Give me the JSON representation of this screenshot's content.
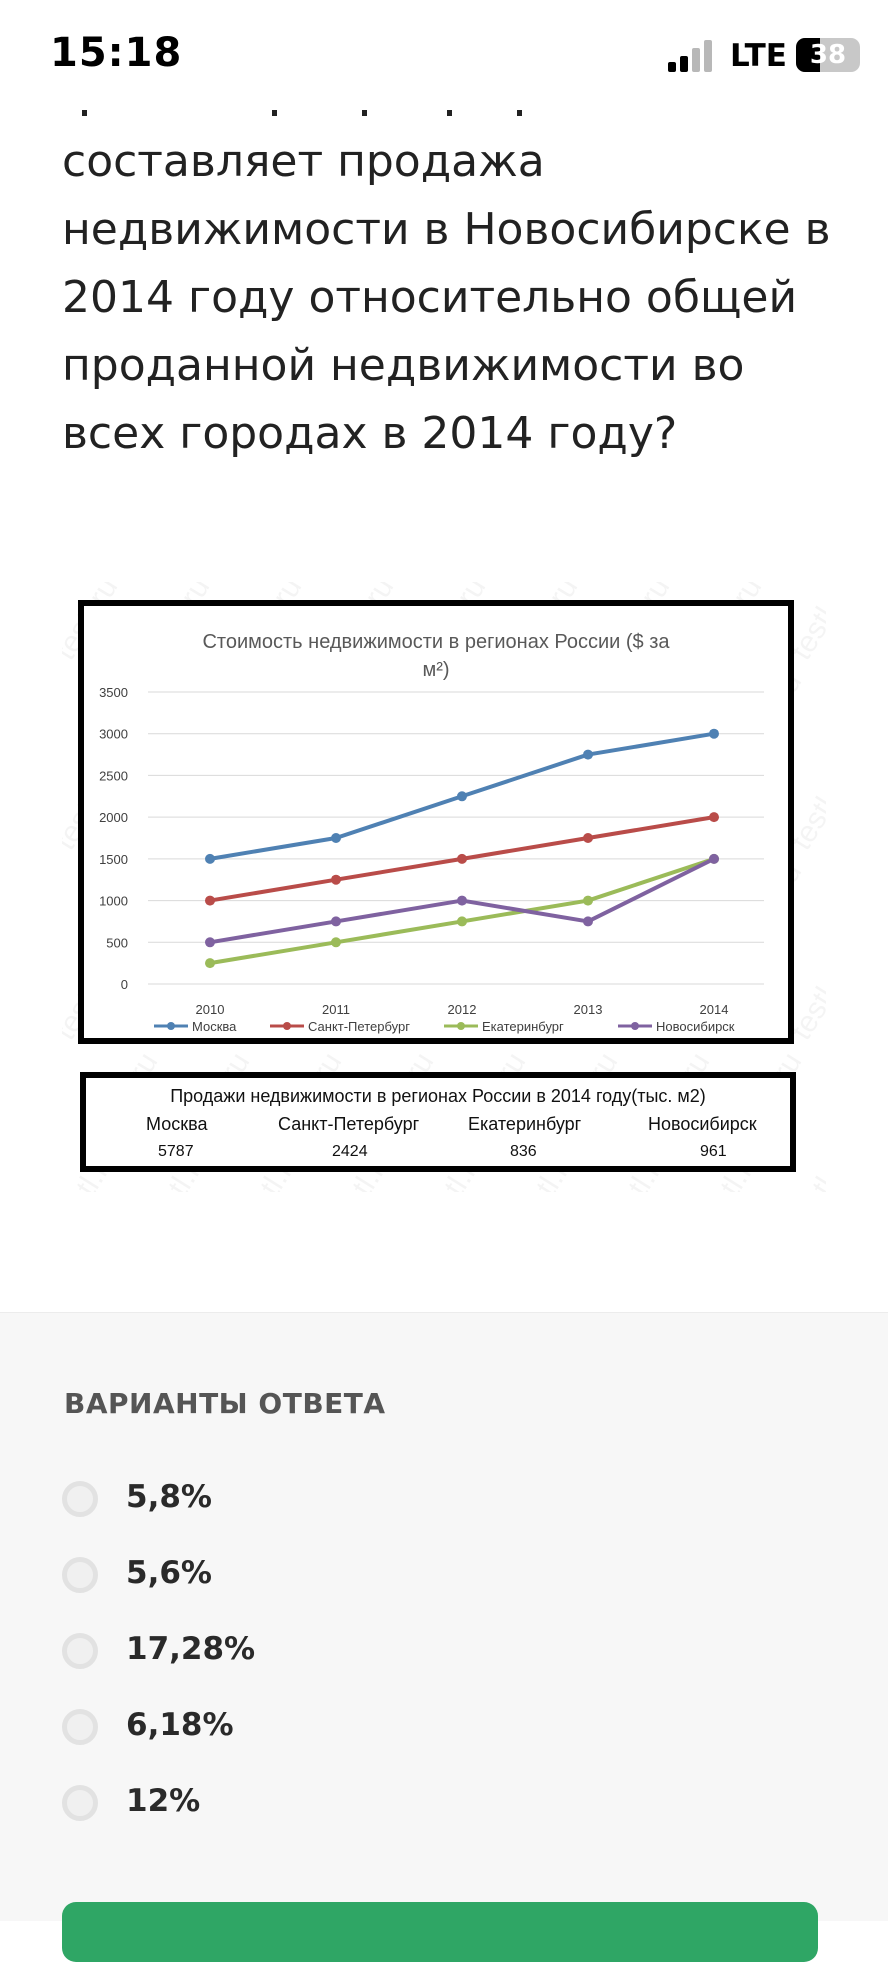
{
  "status_bar": {
    "time": "15:18",
    "network": "LTE",
    "battery": "38",
    "battery_level": 0.38
  },
  "question": {
    "text": "составляет продажа недвижимости в Новосибирске в 2014 году относительно общей проданной недвижимости во всех городах в 2014 году?"
  },
  "figure": {
    "watermark_text": "testl.ru",
    "chart_data": {
      "type": "line",
      "title": "Стоимость недвижимости в регионах России ($ за м²)",
      "title_line1": "Стоимость недвижимости в регионах России ($ за",
      "title_line2": "м²)",
      "categories": [
        "2010",
        "2011",
        "2012",
        "2013",
        "2014"
      ],
      "yticks": [
        "3500",
        "3000",
        "2500",
        "2000",
        "1500",
        "1000",
        "500",
        "0"
      ],
      "ylim": [
        0,
        3500
      ],
      "grid": true,
      "legend_position": "bottom",
      "series": [
        {
          "name": "Москва",
          "color": "#4f81b3",
          "values": [
            1500,
            1750,
            2250,
            2750,
            3000
          ]
        },
        {
          "name": "Санкт-Петербург",
          "color": "#b94c49",
          "values": [
            1000,
            1250,
            1500,
            1750,
            2000
          ]
        },
        {
          "name": "Екатеринбург",
          "color": "#9bbb59",
          "values": [
            250,
            500,
            750,
            1000,
            1500
          ]
        },
        {
          "name": "Новосибирск",
          "color": "#7f62a0",
          "values": [
            500,
            750,
            1000,
            750,
            1500
          ]
        }
      ]
    },
    "sales_table": {
      "title": "Продажи недвижимости в регионах России в 2014 году(тыс. м2)",
      "columns": [
        "Москва",
        "Санкт-Петербург",
        "Екатеринбург",
        "Новосибирск"
      ],
      "values": [
        "5787",
        "2424",
        "836",
        "961"
      ]
    }
  },
  "answers": {
    "heading": "ВАРИАНТЫ ОТВЕТА",
    "options": [
      "5,8%",
      "5,6%",
      "17,28%",
      "6,18%",
      "12%"
    ],
    "accent_color": "#2fa665"
  }
}
